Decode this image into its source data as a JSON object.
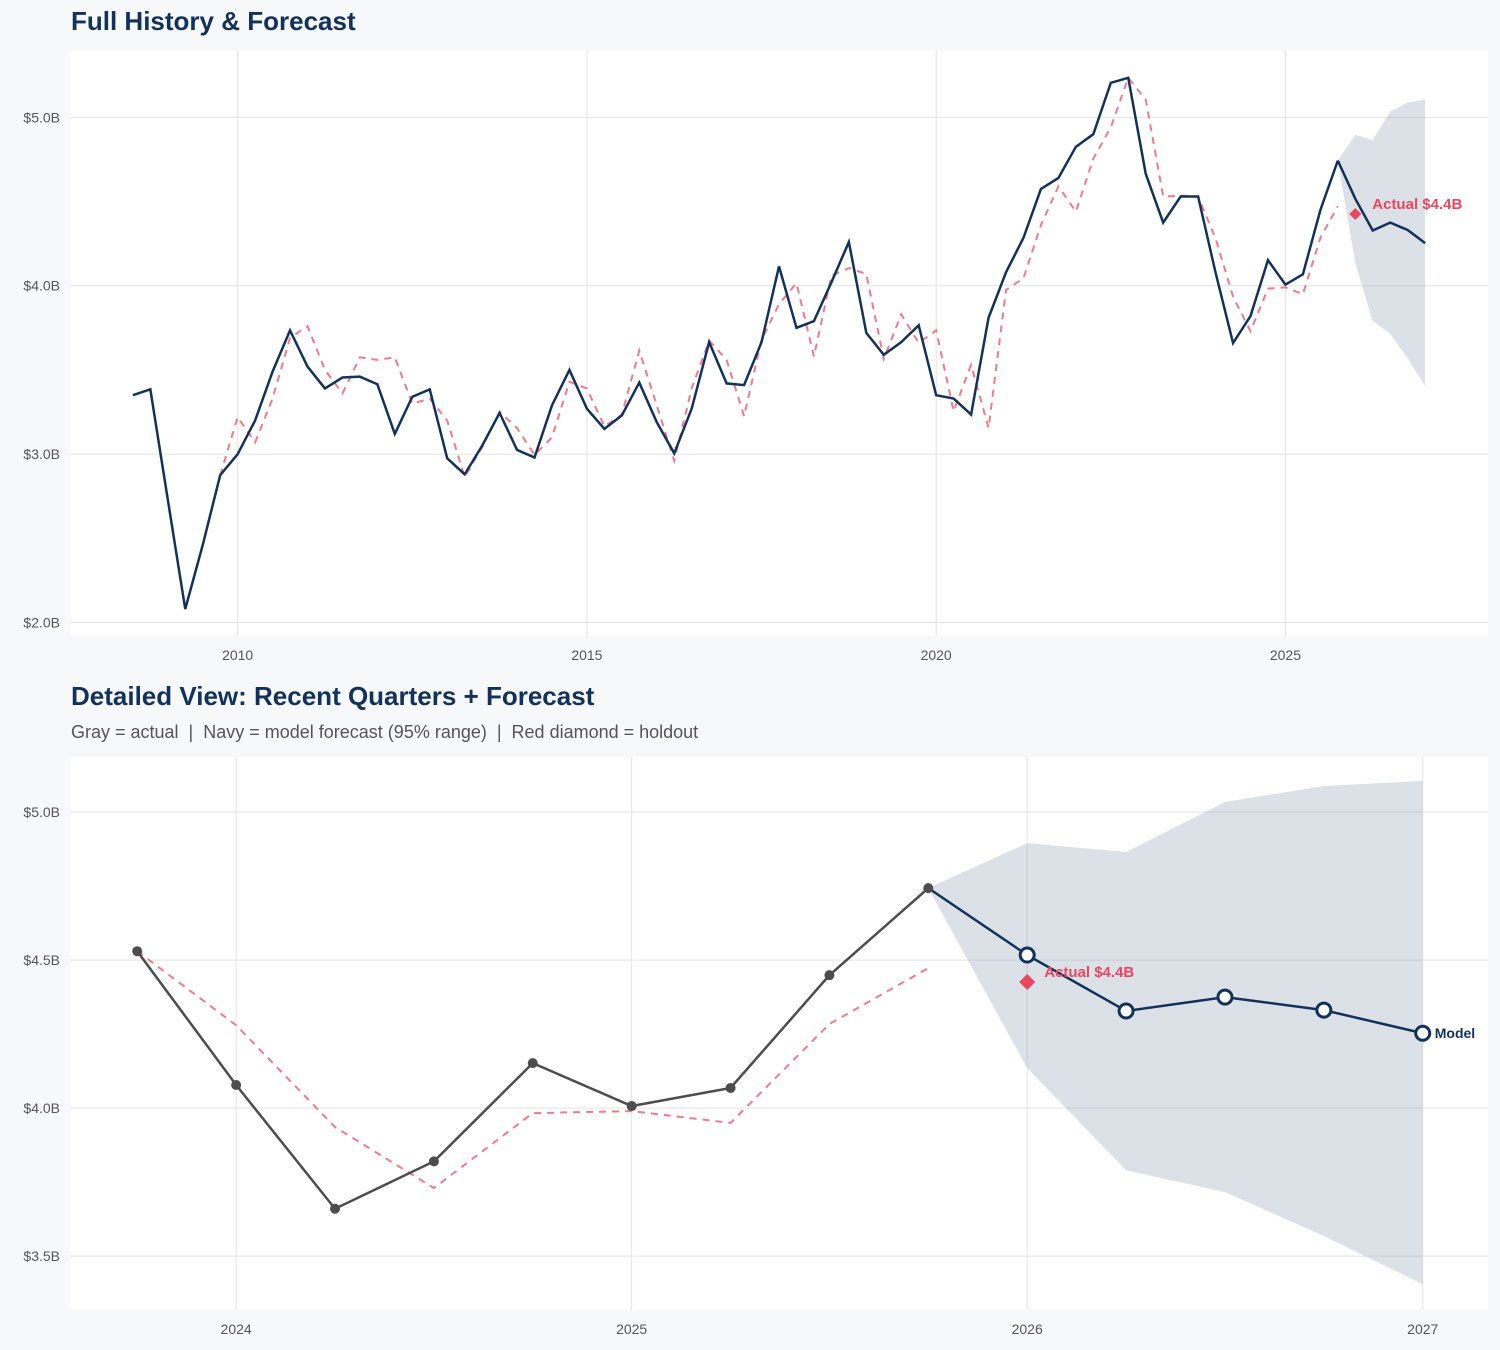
{
  "colors": {
    "navy": "#13325b",
    "red": "#e8475f",
    "red_dashed": "#f07a8c",
    "gray": "#4d4d4d",
    "band": "#dbe0e7",
    "grid": "#e3e3e3",
    "background": "#f7f8fa",
    "panel": "#ffffff"
  },
  "chart_data": [
    {
      "type": "line",
      "title": "Full History & Forecast",
      "xlim": [
        2007.6,
        2027.9
      ],
      "ylim": [
        1.92,
        5.4
      ],
      "x_ticks": [
        2010,
        2015,
        2020,
        2025
      ],
      "x_tick_labels": [
        "2010",
        "2015",
        "2020",
        "2025"
      ],
      "y_ticks": [
        2,
        3,
        4,
        5
      ],
      "y_tick_labels": [
        "$2.0B",
        "$3.0B",
        "$4.0B",
        "$5.0B"
      ],
      "grid": true,
      "actual": {
        "x": [
          2008.5,
          2008.75,
          2009,
          2009.25,
          2009.5,
          2009.75,
          2010,
          2010.25,
          2010.5,
          2010.75,
          2011,
          2011.25,
          2011.5,
          2011.75,
          2012,
          2012.25,
          2012.5,
          2012.75,
          2013,
          2013.25,
          2013.5,
          2013.75,
          2014,
          2014.25,
          2014.5,
          2014.75,
          2015,
          2015.25,
          2015.5,
          2015.75,
          2016,
          2016.25,
          2016.5,
          2016.75,
          2017,
          2017.25,
          2017.5,
          2017.75,
          2018,
          2018.25,
          2018.5,
          2018.75,
          2019,
          2019.25,
          2019.5,
          2019.75,
          2020,
          2020.25,
          2020.5,
          2020.75,
          2021,
          2021.25,
          2021.5,
          2021.75,
          2022,
          2022.25,
          2022.5,
          2022.75,
          2023,
          2023.25,
          2023.5,
          2023.75,
          2024,
          2024.25,
          2024.5,
          2024.75,
          2025,
          2025.25,
          2025.5,
          2025.75
        ],
        "y": [
          3.35,
          3.385,
          2.73,
          2.08,
          2.46,
          2.875,
          3.0,
          3.2,
          3.49,
          3.735,
          3.52,
          3.39,
          3.455,
          3.46,
          3.415,
          3.12,
          3.34,
          3.385,
          2.975,
          2.88,
          3.05,
          3.245,
          3.025,
          2.98,
          3.29,
          3.5,
          3.27,
          3.15,
          3.23,
          3.425,
          3.19,
          3.005,
          3.27,
          3.665,
          3.42,
          3.41,
          3.665,
          4.115,
          3.75,
          3.79,
          4.02,
          4.26,
          3.72,
          3.59,
          3.665,
          3.765,
          3.35,
          3.33,
          3.235,
          3.81,
          4.08,
          4.285,
          4.575,
          4.64,
          4.825,
          4.9,
          5.205,
          5.235,
          4.665,
          4.375,
          4.53,
          4.53,
          4.078,
          3.66,
          3.82,
          4.152,
          4.007,
          4.068,
          4.449,
          4.743
        ]
      },
      "fitted": {
        "x": [
          2009.75,
          2010,
          2010.25,
          2010.5,
          2010.75,
          2011,
          2011.25,
          2011.5,
          2011.75,
          2012,
          2012.25,
          2012.5,
          2012.75,
          2013,
          2013.25,
          2013.5,
          2013.75,
          2014,
          2014.25,
          2014.5,
          2014.75,
          2015,
          2015.25,
          2015.5,
          2015.75,
          2016,
          2016.25,
          2016.5,
          2016.75,
          2017,
          2017.25,
          2017.5,
          2017.75,
          2018,
          2018.25,
          2018.5,
          2018.75,
          2019,
          2019.25,
          2019.5,
          2019.75,
          2020,
          2020.25,
          2020.5,
          2020.75,
          2021,
          2021.25,
          2021.5,
          2021.75,
          2022,
          2022.25,
          2022.5,
          2022.75,
          2023,
          2023.25,
          2023.5,
          2023.75,
          2024,
          2024.25,
          2024.5,
          2024.75,
          2025,
          2025.25,
          2025.5,
          2025.75
        ],
        "y": [
          2.875,
          3.22,
          3.07,
          3.33,
          3.69,
          3.76,
          3.5,
          3.36,
          3.575,
          3.56,
          3.575,
          3.3,
          3.33,
          3.2,
          2.865,
          3.04,
          3.25,
          3.155,
          2.995,
          3.1,
          3.43,
          3.39,
          3.165,
          3.235,
          3.615,
          3.29,
          2.96,
          3.39,
          3.675,
          3.56,
          3.225,
          3.68,
          3.89,
          4.015,
          3.58,
          4.06,
          4.105,
          4.07,
          3.565,
          3.83,
          3.66,
          3.735,
          3.255,
          3.53,
          3.155,
          3.975,
          4.045,
          4.36,
          4.59,
          4.44,
          4.755,
          4.94,
          5.235,
          5.105,
          4.53,
          4.535,
          4.53,
          4.28,
          3.936,
          3.73,
          3.983,
          3.99,
          3.95,
          4.284,
          4.473
        ]
      },
      "forecast": {
        "x": [
          2025.75,
          2026,
          2026.25,
          2026.5,
          2026.75,
          2027
        ],
        "y": [
          4.743,
          4.517,
          4.328,
          4.375,
          4.331,
          4.253
        ],
        "upper": [
          4.743,
          4.895,
          4.865,
          5.034,
          5.088,
          5.105
        ],
        "lower": [
          4.743,
          4.135,
          3.79,
          3.716,
          3.568,
          3.405
        ]
      },
      "holdout": {
        "x": 2026,
        "y": 4.426,
        "label": "Actual $4.4B"
      }
    },
    {
      "type": "line",
      "title": "Detailed View: Recent Quarters + Forecast",
      "subtitle": "Gray = actual  |  Navy = model forecast (95% range)  |  Red diamond = holdout",
      "xlim": [
        2023.58,
        2027.165
      ],
      "ylim": [
        3.318,
        5.186
      ],
      "x_ticks": [
        2024,
        2025,
        2026,
        2027
      ],
      "x_tick_labels": [
        "2024",
        "2025",
        "2026",
        "2027"
      ],
      "y_ticks": [
        3.5,
        4.0,
        4.5,
        5.0
      ],
      "y_tick_labels": [
        "$3.5B",
        "$4.0B",
        "$4.5B",
        "$5.0B"
      ],
      "grid": true,
      "actual": {
        "x": [
          2023.75,
          2024,
          2024.25,
          2024.5,
          2024.75,
          2025,
          2025.25,
          2025.5,
          2025.75
        ],
        "y": [
          4.53,
          4.078,
          3.66,
          3.82,
          4.152,
          4.007,
          4.068,
          4.449,
          4.743
        ]
      },
      "fitted": {
        "x": [
          2023.75,
          2024,
          2024.25,
          2024.5,
          2024.75,
          2025,
          2025.25,
          2025.5,
          2025.75
        ],
        "y": [
          4.53,
          4.28,
          3.936,
          3.73,
          3.983,
          3.99,
          3.95,
          4.284,
          4.473
        ]
      },
      "forecast": {
        "name": "Model",
        "x": [
          2025.75,
          2026,
          2026.25,
          2026.5,
          2026.75,
          2027
        ],
        "y": [
          4.743,
          4.517,
          4.328,
          4.375,
          4.331,
          4.253
        ],
        "upper": [
          4.743,
          4.895,
          4.865,
          5.034,
          5.088,
          5.105
        ],
        "lower": [
          4.743,
          4.135,
          3.79,
          3.716,
          3.568,
          3.405
        ]
      },
      "holdout": {
        "x": 2026,
        "y": 4.426,
        "label": "Actual $4.4B"
      }
    }
  ]
}
